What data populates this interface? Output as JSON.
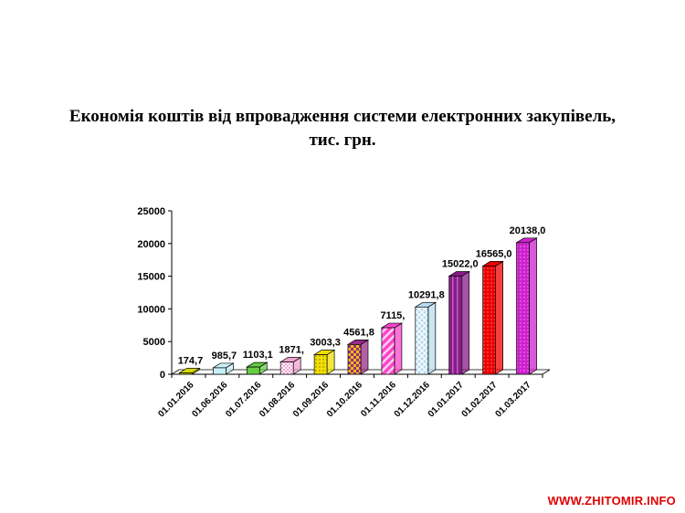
{
  "chart_data": {
    "type": "bar",
    "title_line1": "Економія коштів від впровадження системи електронних закупівель,",
    "title_line2": "тис. грн.",
    "categories": [
      "01.01.2016",
      "01.06.2016",
      "01.07.2016",
      "01.08.2016",
      "01.09.2016",
      "01.10.2016",
      "01.11.2016",
      "01.12.2016",
      "01.01.2017",
      "01.02.2017",
      "01.03.2017"
    ],
    "values": [
      174.7,
      985.7,
      1103.1,
      1871.0,
      3003.3,
      4561.8,
      7115.0,
      10291.8,
      15022.0,
      16565.0,
      20138.0
    ],
    "data_labels": [
      "174,7",
      "985,7",
      "1103,1",
      "1871,",
      "3003,3",
      "4561,8",
      "7115,",
      "10291,8",
      "15022,0",
      "16565,0",
      "20138,0"
    ],
    "y_ticks": [
      0,
      5000,
      10000,
      15000,
      20000,
      25000
    ],
    "ylim": [
      0,
      25000
    ],
    "grid": false,
    "bar_colors": [
      "#d8d800",
      "#c8f0f8",
      "#66cc44",
      "#f0a0d0",
      "#f0e000",
      "#9a2a8a",
      "#ff44cc",
      "#b8dcf0",
      "#8a1a8a",
      "#ee0000",
      "#cc22cc"
    ]
  },
  "watermark": "WWW.ZHITOMIR.INFO"
}
